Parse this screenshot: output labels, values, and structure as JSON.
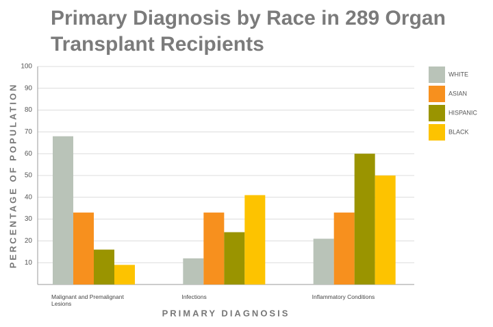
{
  "chart_data": {
    "type": "bar",
    "title": "Primary Diagnosis by Race in 289 Organ Transplant Recipients",
    "x_label": "PRIMARY DIAGNOSIS",
    "y_label": "PERCENTAGE OF POPULATION",
    "categories": [
      "Malignant and Premalignant Lesions",
      "Infections",
      "Inflammatory Conditions"
    ],
    "series": [
      {
        "name": "WHITE",
        "color": "#b9c3b8",
        "values": [
          68,
          12,
          21
        ]
      },
      {
        "name": "ASIAN",
        "color": "#f7901e",
        "values": [
          33,
          33,
          33
        ]
      },
      {
        "name": "HISPANIC",
        "color": "#9a9400",
        "values": [
          16,
          24,
          60
        ]
      },
      {
        "name": "BLACK",
        "color": "#fdc300",
        "values": [
          9,
          41,
          50
        ]
      }
    ],
    "ylim": [
      0,
      100
    ],
    "yticks": [
      10,
      20,
      30,
      40,
      50,
      60,
      70,
      80,
      90,
      100
    ],
    "grid": true,
    "legend": "right"
  }
}
